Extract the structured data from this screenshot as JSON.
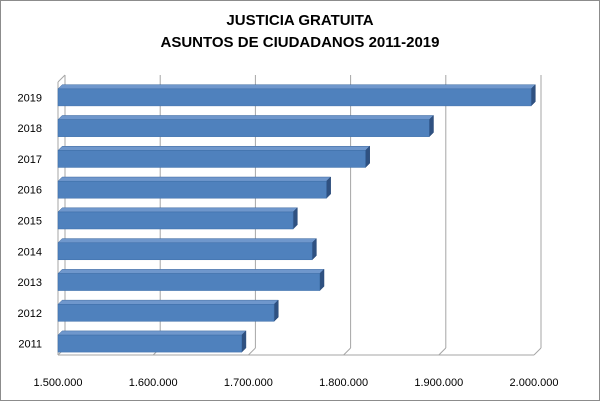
{
  "chart_data": {
    "type": "bar",
    "orientation": "horizontal",
    "title": "JUSTICIA GRATUITA",
    "subtitle": "ASUNTOS DE CIUDADANOS 2011-2019",
    "categories": [
      "2011",
      "2012",
      "2013",
      "2014",
      "2015",
      "2016",
      "2017",
      "2018",
      "2019"
    ],
    "values": [
      1693000,
      1727000,
      1775000,
      1767000,
      1747000,
      1782000,
      1823000,
      1890000,
      1997000
    ],
    "xlim": [
      1500000,
      2000000
    ],
    "xticks": [
      "1.500.000",
      "1.600.000",
      "1.700.000",
      "1.800.000",
      "1.900.000",
      "2.000.000"
    ],
    "xlabel": "",
    "ylabel": "",
    "grid": true,
    "legend": "none",
    "bar_color": "#4f81bd"
  }
}
